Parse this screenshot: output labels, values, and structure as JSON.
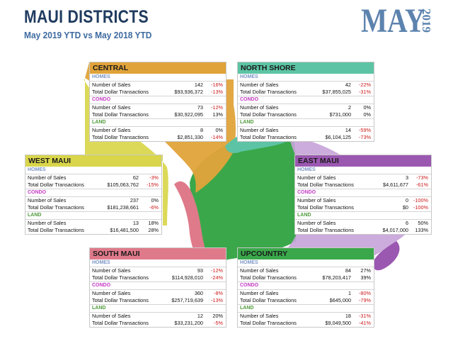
{
  "header": {
    "title": "MAUI DISTRICTS",
    "subtitle": "May 2019 YTD vs May 2018 YTD",
    "month": "MAY",
    "year": "2019"
  },
  "colors": {
    "central": "#e0a33a",
    "north_shore": "#5cc4a4",
    "west_maui": "#d9d64b",
    "east_maui": "#9b58b1",
    "south_maui": "#df7a8a",
    "upcountry": "#3aa84a",
    "homes_label": "#7a96c6",
    "condo_label": "#c438c4",
    "land_label": "#4e9a3a",
    "negative": "#cc1a1a"
  },
  "section_labels": {
    "homes": "HOMES",
    "condo": "CONDO",
    "land": "LAND"
  },
  "row_labels": {
    "sales": "Number of Sales",
    "dollars": "Total Dollar Transactions"
  },
  "districts": {
    "central": {
      "name": "CENTRAL",
      "homes": {
        "sales": "142",
        "sales_chg": "-16%",
        "dollars": "$93,936,372",
        "dollars_chg": "-13%"
      },
      "condo": {
        "sales": "73",
        "sales_chg": "-12%",
        "dollars": "$30,922,095",
        "dollars_chg": "13%"
      },
      "land": {
        "sales": "8",
        "sales_chg": "0%",
        "dollars": "$2,851,330",
        "dollars_chg": "-14%"
      }
    },
    "north_shore": {
      "name": "NORTH SHORE",
      "homes": {
        "sales": "42",
        "sales_chg": "-22%",
        "dollars": "$37,855,025",
        "dollars_chg": "-31%"
      },
      "condo": {
        "sales": "2",
        "sales_chg": "0%",
        "dollars": "$731,000",
        "dollars_chg": "0%"
      },
      "land": {
        "sales": "14",
        "sales_chg": "-59%",
        "dollars": "$6,104,125",
        "dollars_chg": "-73%"
      }
    },
    "west_maui": {
      "name": "WEST MAUI",
      "homes": {
        "sales": "62",
        "sales_chg": "-3%",
        "dollars": "$105,063,762",
        "dollars_chg": "-15%"
      },
      "condo": {
        "sales": "237",
        "sales_chg": "0%",
        "dollars": "$181,238,661",
        "dollars_chg": "-6%"
      },
      "land": {
        "sales": "13",
        "sales_chg": "18%",
        "dollars": "$16,481,500",
        "dollars_chg": "28%"
      }
    },
    "east_maui": {
      "name": "EAST MAUI",
      "homes": {
        "sales": "3",
        "sales_chg": "-73%",
        "dollars": "$4,611,677",
        "dollars_chg": "-61%"
      },
      "condo": {
        "sales": "0",
        "sales_chg": "-100%",
        "dollars": "$0",
        "dollars_chg": "-100%"
      },
      "land": {
        "sales": "6",
        "sales_chg": "50%",
        "dollars": "$4,017,000",
        "dollars_chg": "133%"
      }
    },
    "south_maui": {
      "name": "SOUTH MAUI",
      "homes": {
        "sales": "93",
        "sales_chg": "-12%",
        "dollars": "$114,928,010",
        "dollars_chg": "-24%"
      },
      "condo": {
        "sales": "360",
        "sales_chg": "-8%",
        "dollars": "$257,719,639",
        "dollars_chg": "-13%"
      },
      "land": {
        "sales": "12",
        "sales_chg": "20%",
        "dollars": "$33,231,200",
        "dollars_chg": "-5%"
      }
    },
    "upcountry": {
      "name": "UPCOUNTRY",
      "homes": {
        "sales": "84",
        "sales_chg": "27%",
        "dollars": "$78,203,417",
        "dollars_chg": "39%"
      },
      "condo": {
        "sales": "1",
        "sales_chg": "-80%",
        "dollars": "$645,000",
        "dollars_chg": "-79%"
      },
      "land": {
        "sales": "18",
        "sales_chg": "-31%",
        "dollars": "$9,049,500",
        "dollars_chg": "-41%"
      }
    }
  }
}
